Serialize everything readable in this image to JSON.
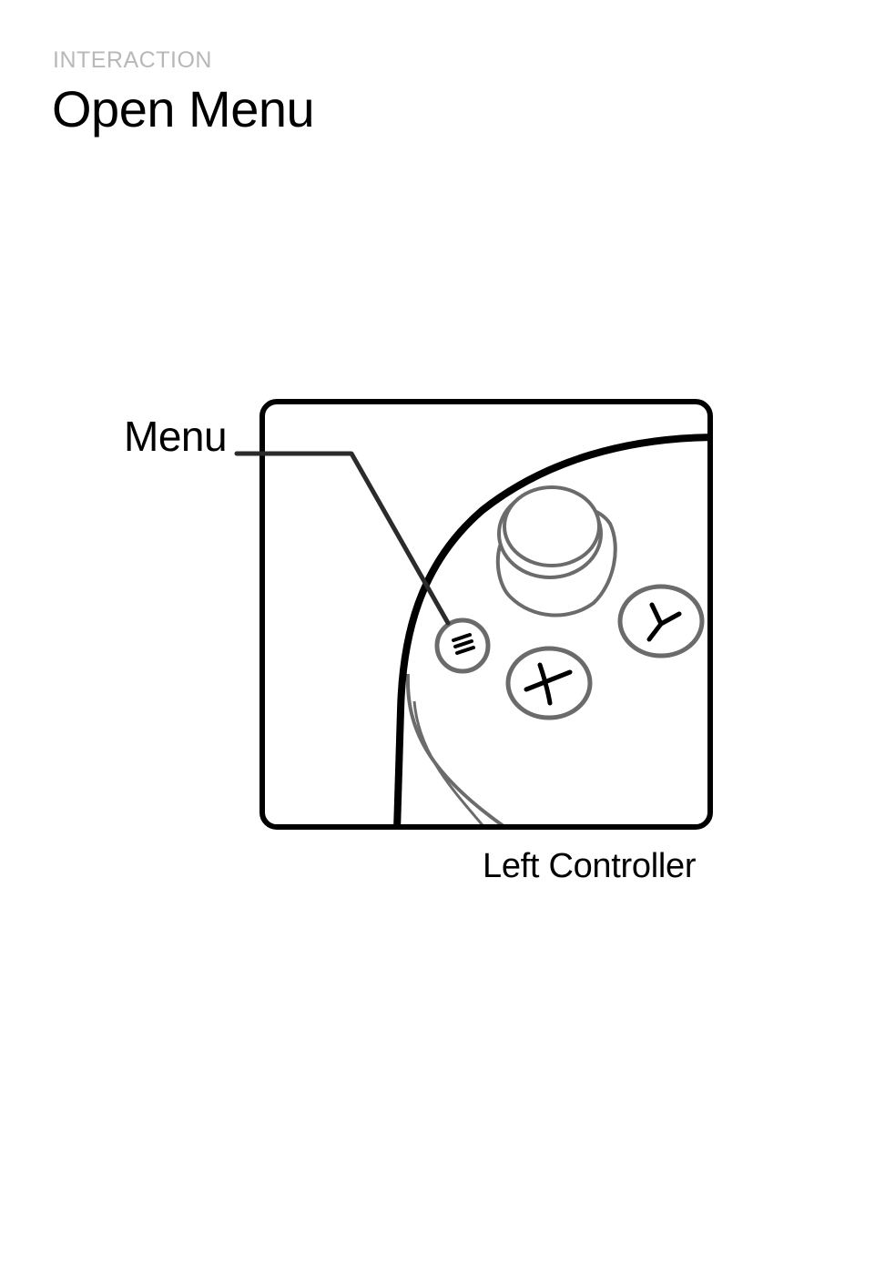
{
  "header": {
    "eyebrow": "INTERACTION",
    "title": "Open Menu"
  },
  "diagram": {
    "callout_label": "Menu",
    "caption": "Left Controller",
    "buttons": {
      "x_label": "X",
      "y_label": "Y"
    },
    "colors": {
      "outline": "#000000",
      "detail": "#6b6b6b",
      "leader": "#2b2b2b",
      "eyebrow": "#b8b8b8"
    }
  }
}
